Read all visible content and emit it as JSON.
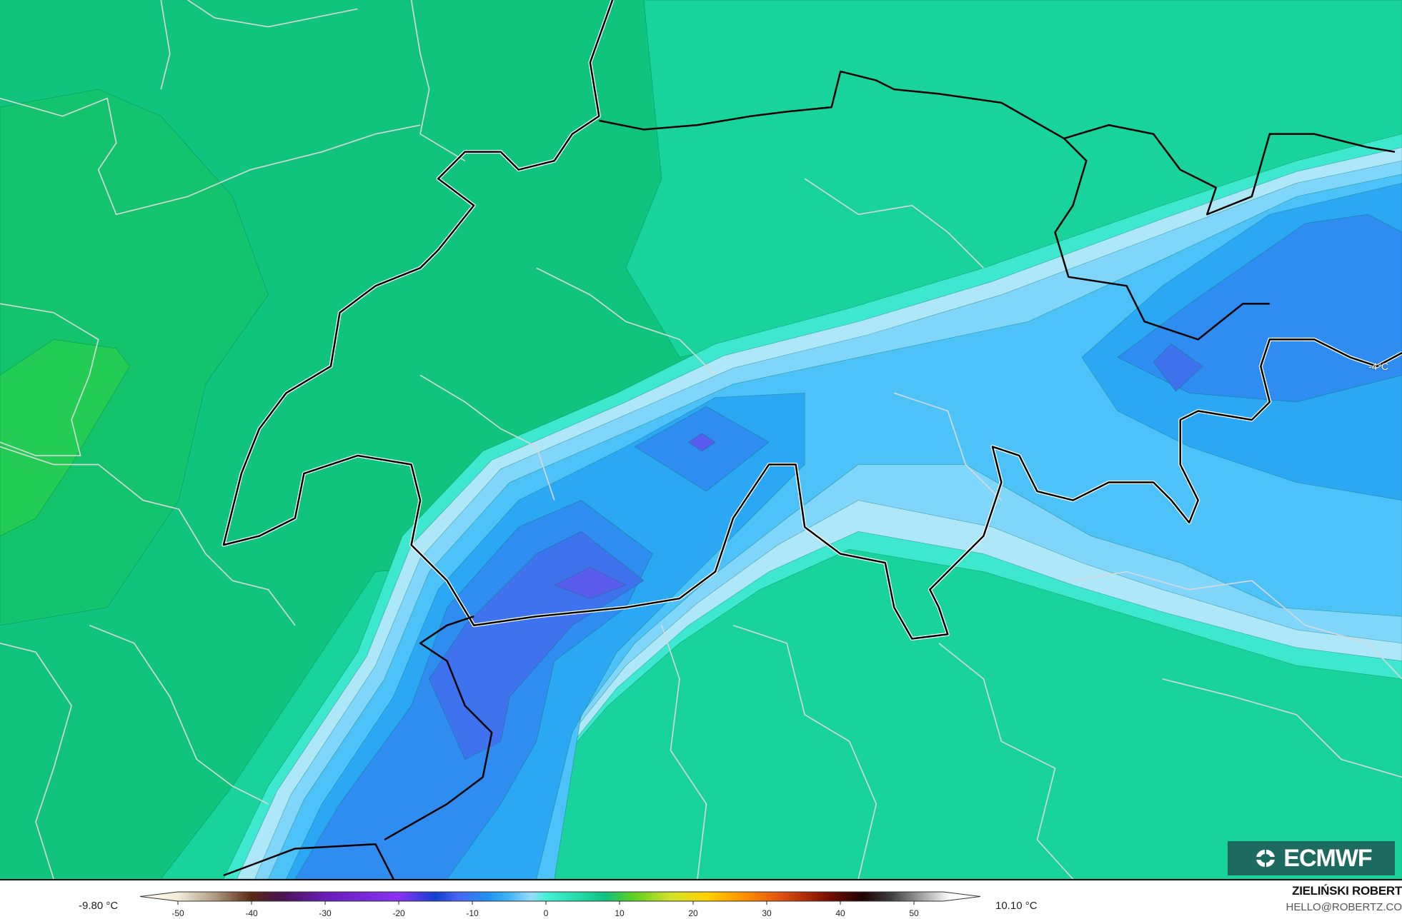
{
  "map": {
    "point_label": "-4°C",
    "fill_colors": {
      "green_warm": "#22cc55",
      "green": "#10c478",
      "teal": "#12cf94",
      "teal_light": "#20dcaa",
      "cyan": "#3ee8cf",
      "ice": "#aee8f8",
      "sky": "#80d6fa",
      "blue1": "#4cc2f8",
      "blue2": "#2aa8f4",
      "blue3": "#2f8cf0",
      "blue4": "#3f72ee",
      "violet": "#5a5cf0"
    },
    "border_color": "#000000",
    "admin_line_color": "#d0d0d0"
  },
  "colorbar": {
    "min_label": "-9.80 °C",
    "max_label": "10.10 °C",
    "ticks": [
      "-50",
      "-40",
      "-30",
      "-20",
      "-10",
      "0",
      "10",
      "20",
      "30",
      "40",
      "50"
    ],
    "range": [
      -50,
      50
    ],
    "stops": [
      [
        -55,
        "#fffff0"
      ],
      [
        -50,
        "#f3ecd8"
      ],
      [
        -45,
        "#b09a80"
      ],
      [
        -40,
        "#5a2810"
      ],
      [
        -36,
        "#4a1450"
      ],
      [
        -30,
        "#6a1cb8"
      ],
      [
        -20,
        "#8a32f4"
      ],
      [
        -15,
        "#1040d0"
      ],
      [
        -12,
        "#4a64f4"
      ],
      [
        -8,
        "#2090f0"
      ],
      [
        -5,
        "#40b4f8"
      ],
      [
        -2,
        "#98dcfa"
      ],
      [
        0,
        "#44f0d8"
      ],
      [
        5,
        "#20d8a4"
      ],
      [
        8,
        "#10c080"
      ],
      [
        12,
        "#60d020"
      ],
      [
        17,
        "#d4e228"
      ],
      [
        22,
        "#ffd000"
      ],
      [
        27,
        "#ff9000"
      ],
      [
        32,
        "#e05010"
      ],
      [
        38,
        "#801000"
      ],
      [
        43,
        "#200000"
      ],
      [
        47,
        "#404040"
      ],
      [
        52,
        "#b8b8b8"
      ],
      [
        55,
        "#ffffff"
      ]
    ]
  },
  "logo": {
    "text": "ECMWF",
    "color": "#1d6b60"
  },
  "credit": {
    "name": "ZIELIŃSKI ROBERT",
    "email": "HELLO@ROBERTZ.CO"
  }
}
